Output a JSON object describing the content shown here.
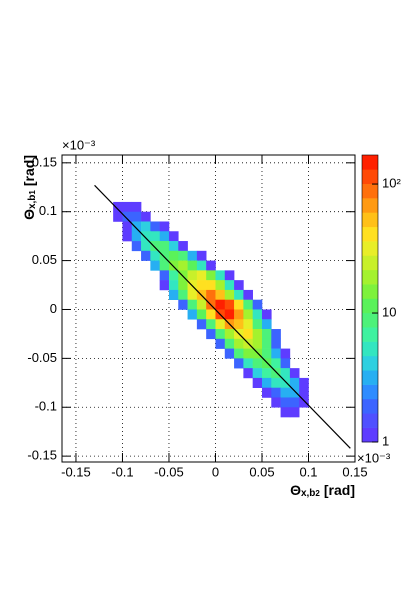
{
  "chart_data": {
    "type": "heatmap",
    "x_label": {
      "text": "Θ",
      "sub": "x,b",
      "subsub": "2",
      "unit": "[rad]"
    },
    "y_label": {
      "text": "Θ",
      "sub": "x,b",
      "subsub": "1",
      "unit": "[rad]"
    },
    "x_multiplier": "×10⁻³",
    "y_multiplier": "×10⁻³",
    "xlim": [
      -0.165,
      0.15
    ],
    "xticks": [
      -0.15,
      -0.1,
      -0.05,
      0,
      0.05,
      0.1,
      0.15
    ],
    "ylim": [
      -0.156,
      0.158
    ],
    "yticks": [
      -0.15,
      -0.1,
      -0.05,
      0,
      0.05,
      0.1,
      0.15
    ],
    "grid": true,
    "zlog": true,
    "zlim": [
      1,
      168
    ],
    "zticks": [
      1,
      10,
      {
        "value": 100,
        "label": "10²"
      }
    ],
    "bin_width": 0.01,
    "palette": [
      "#5e3cff",
      "#5050ff",
      "#3c64ff",
      "#2e8cff",
      "#27aff2",
      "#2ed0e0",
      "#33e6c0",
      "#3ff2a0",
      "#4df27a",
      "#5af25a",
      "#7ef23c",
      "#a4f22e",
      "#c8f02a",
      "#e8ee28",
      "#ffe020",
      "#ffc018",
      "#ff9a12",
      "#ff700c",
      "#ff4a06",
      "#ff2000"
    ],
    "rows": [
      {
        "y_start": 0.1,
        "x_start": -0.11,
        "counts": [
          1,
          1,
          1
        ]
      },
      {
        "y_start": 0.09,
        "x_start": -0.11,
        "counts": [
          1,
          2,
          2,
          1
        ]
      },
      {
        "y_start": 0.08,
        "x_start": -0.1,
        "counts": [
          1,
          3,
          4,
          2,
          1
        ]
      },
      {
        "y_start": 0.07,
        "x_start": -0.1,
        "counts": [
          1,
          3,
          5,
          6,
          3,
          1
        ]
      },
      {
        "y_start": 0.06,
        "x_start": -0.09,
        "counts": [
          2,
          5,
          8,
          9,
          4,
          1
        ]
      },
      {
        "y_start": 0.05,
        "x_start": -0.08,
        "counts": [
          2,
          6,
          10,
          12,
          8,
          3,
          1
        ]
      },
      {
        "y_start": 0.04,
        "x_start": -0.07,
        "counts": [
          3,
          8,
          14,
          18,
          12,
          5,
          1
        ]
      },
      {
        "y_start": 0.03,
        "x_start": -0.06,
        "counts": [
          2,
          7,
          15,
          25,
          30,
          16,
          6,
          1
        ]
      },
      {
        "y_start": 0.02,
        "x_start": -0.06,
        "counts": [
          1,
          5,
          14,
          30,
          45,
          40,
          18,
          5,
          1
        ]
      },
      {
        "y_start": 0.01,
        "x_start": -0.05,
        "counts": [
          3,
          10,
          28,
          60,
          90,
          55,
          20,
          5,
          1
        ]
      },
      {
        "y_start": 0.0,
        "x_start": -0.04,
        "counts": [
          2,
          8,
          25,
          80,
          150,
          110,
          40,
          10,
          2
        ]
      },
      {
        "y_start": -0.01,
        "x_start": -0.03,
        "counts": [
          3,
          12,
          45,
          120,
          140,
          70,
          20,
          5,
          1
        ]
      },
      {
        "y_start": -0.02,
        "x_start": -0.02,
        "counts": [
          2,
          10,
          35,
          70,
          60,
          30,
          10,
          3
        ]
      },
      {
        "y_start": -0.03,
        "x_start": -0.01,
        "counts": [
          2,
          8,
          20,
          35,
          40,
          20,
          8,
          2
        ]
      },
      {
        "y_start": -0.04,
        "x_start": 0.0,
        "counts": [
          2,
          8,
          20,
          25,
          18,
          8,
          2
        ]
      },
      {
        "y_start": -0.05,
        "x_start": 0.01,
        "counts": [
          2,
          8,
          14,
          16,
          10,
          3,
          1
        ]
      },
      {
        "y_start": -0.06,
        "x_start": 0.02,
        "counts": [
          2,
          6,
          10,
          12,
          7,
          2
        ]
      },
      {
        "y_start": -0.07,
        "x_start": 0.03,
        "counts": [
          1,
          4,
          7,
          8,
          5,
          1
        ]
      },
      {
        "y_start": -0.08,
        "x_start": 0.04,
        "counts": [
          1,
          3,
          5,
          5,
          3,
          1
        ]
      },
      {
        "y_start": -0.09,
        "x_start": 0.05,
        "counts": [
          1,
          2,
          3,
          3,
          1
        ]
      },
      {
        "y_start": -0.1,
        "x_start": 0.06,
        "counts": [
          1,
          2,
          2,
          1
        ]
      },
      {
        "y_start": -0.11,
        "x_start": 0.07,
        "counts": [
          1,
          1
        ]
      }
    ],
    "fit_line": {
      "x": [
        -0.13,
        0.145
      ],
      "y": [
        0.127,
        -0.142
      ],
      "color": "#000000"
    }
  }
}
